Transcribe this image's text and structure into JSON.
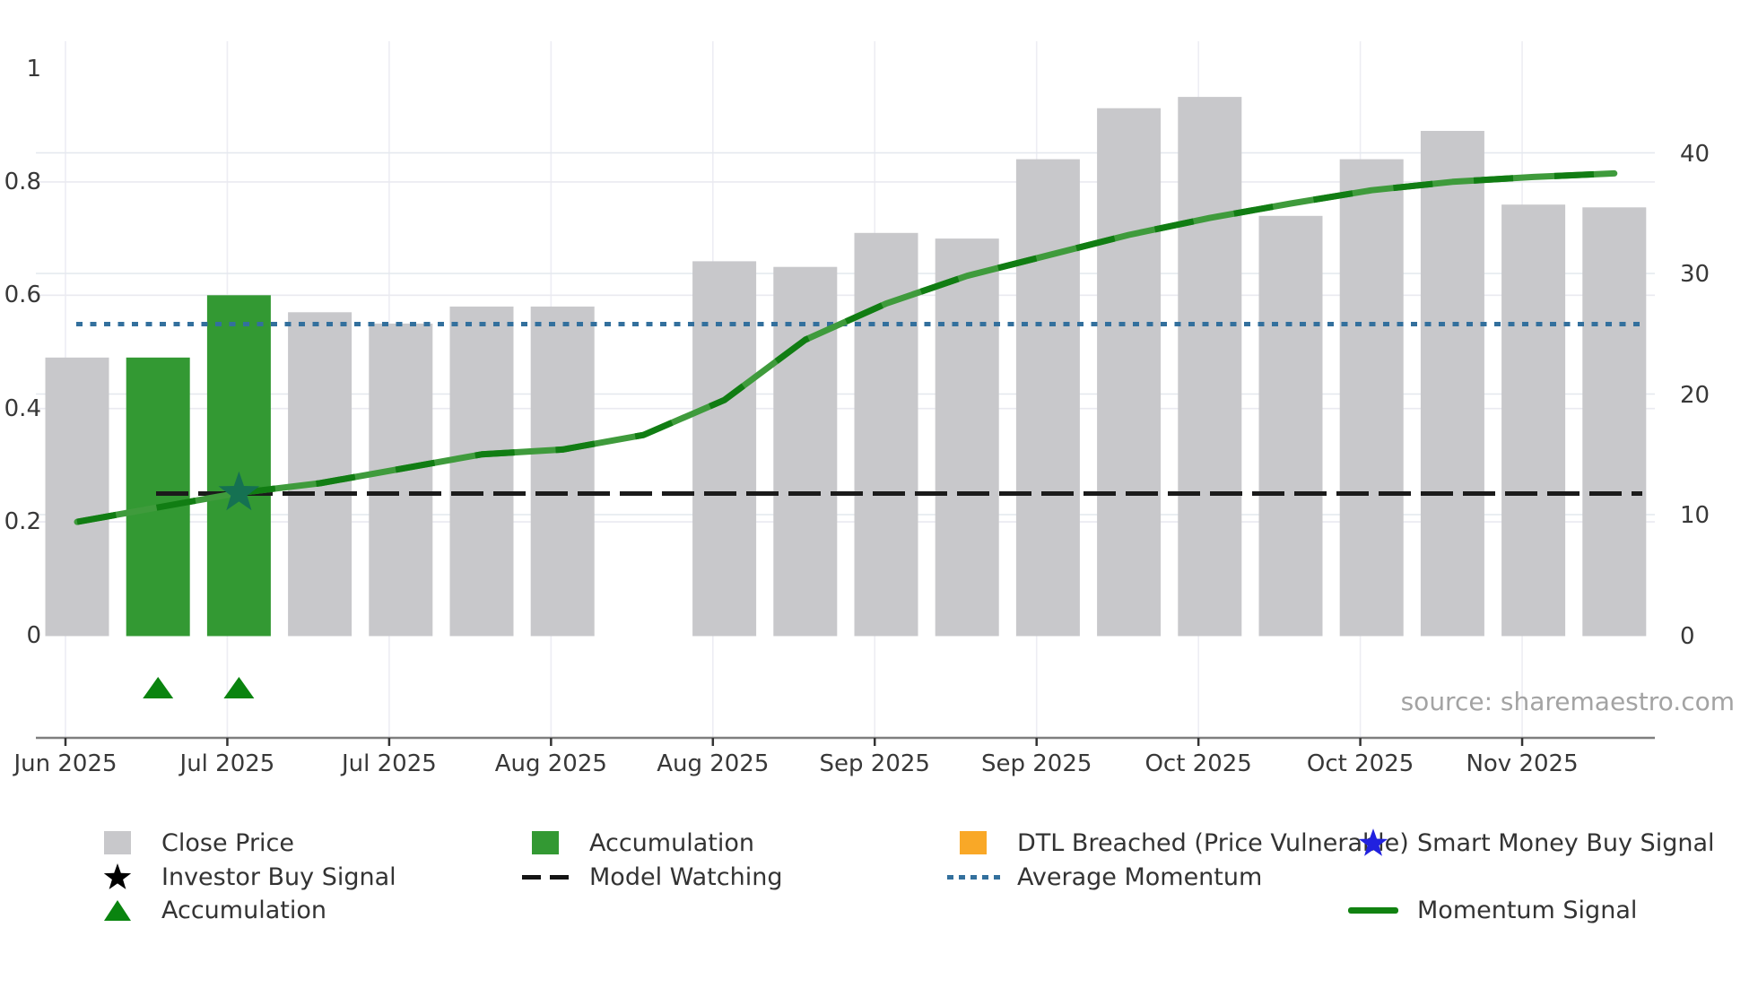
{
  "meta": {
    "source_note": "source: sharemaestro.com"
  },
  "legend": {
    "items": [
      {
        "label": "Close Price",
        "marker": "square",
        "color": "#c8c8cb"
      },
      {
        "label": "Investor Buy Signal",
        "marker": "star",
        "color": "#000000"
      },
      {
        "label": "Accumulation",
        "marker": "triangle",
        "color": "#0a840f"
      },
      {
        "label": "Accumulation",
        "marker": "square",
        "color": "#339933"
      },
      {
        "label": "Model Watching",
        "marker": "dashed-line",
        "color": "#141414"
      },
      {
        "label": "DTL Breached (Price Vulnerable)",
        "marker": "square",
        "color": "#f9a827"
      },
      {
        "label": "Average Momentum",
        "marker": "dotted-line",
        "color": "#33709d"
      },
      {
        "label": "Smart Money Buy Signal",
        "marker": "star",
        "color": "#2121df"
      },
      {
        "label": "Momentum Signal",
        "marker": "line",
        "color": "#118211"
      }
    ]
  },
  "chart_data": {
    "type": "combo-bar-line-dual-axis",
    "title": "",
    "x_tick_labels": [
      "Jun 2025",
      "Jul 2025",
      "Jul 2025",
      "Aug 2025",
      "Aug 2025",
      "Sep 2025",
      "Sep 2025",
      "Oct 2025",
      "Oct 2025",
      "Nov 2025"
    ],
    "left_axis": {
      "tick_labels": [
        "0",
        "0.2",
        "0.4",
        "0.6",
        "0.8",
        "1"
      ],
      "tick_values": [
        0,
        0.2,
        0.4,
        0.6,
        0.8,
        1
      ],
      "range": [
        -0.18,
        1.06
      ]
    },
    "right_axis": {
      "tick_labels": [
        "0",
        "10",
        "20",
        "30",
        "40"
      ],
      "tick_values": [
        0,
        10,
        20,
        30,
        40
      ],
      "range": [
        -6.3,
        40
      ]
    },
    "num_slots": 20,
    "missing_slot": 7,
    "series": [
      {
        "name": "Close Price",
        "type": "bar",
        "axis": "left",
        "color": "#c8c8cb",
        "values": [
          0.49,
          0.49,
          0.6,
          0.57,
          0.55,
          0.58,
          0.58,
          null,
          0.66,
          0.65,
          0.71,
          0.7,
          0.84,
          0.93,
          0.95,
          0.74,
          0.84,
          0.89,
          0.76,
          0.755
        ]
      },
      {
        "name": "Accumulation",
        "type": "bar-highlight",
        "color": "#339933",
        "slots": [
          1,
          2
        ]
      },
      {
        "name": "Momentum Signal",
        "type": "line",
        "axis": "right",
        "color": "#3f9b3c",
        "color_dash": "#117d13",
        "values": [
          9.4,
          10.6,
          11.8,
          12.6,
          13.8,
          15.0,
          15.4,
          16.6,
          19.5,
          24.5,
          27.5,
          29.8,
          31.5,
          33.2,
          34.6,
          35.8,
          36.9,
          37.6,
          38.0,
          38.3
        ]
      },
      {
        "name": "Average Momentum",
        "type": "hline",
        "axis": "right",
        "value": 25.8,
        "color": "#33709d",
        "style": "dotted"
      },
      {
        "name": "Model Watching",
        "type": "hline",
        "axis": "left",
        "value": 0.25,
        "color": "#1b1b1b",
        "style": "dashed"
      },
      {
        "name": "Investor Buy Signal",
        "type": "marker-star",
        "slot": 2,
        "value_right": 11.8,
        "color": "#157152"
      },
      {
        "name": "Accumulation",
        "type": "marker-triangle",
        "slots": [
          1,
          2
        ],
        "color": "#0a840f"
      }
    ],
    "legend_position": "bottom",
    "grid": true
  }
}
